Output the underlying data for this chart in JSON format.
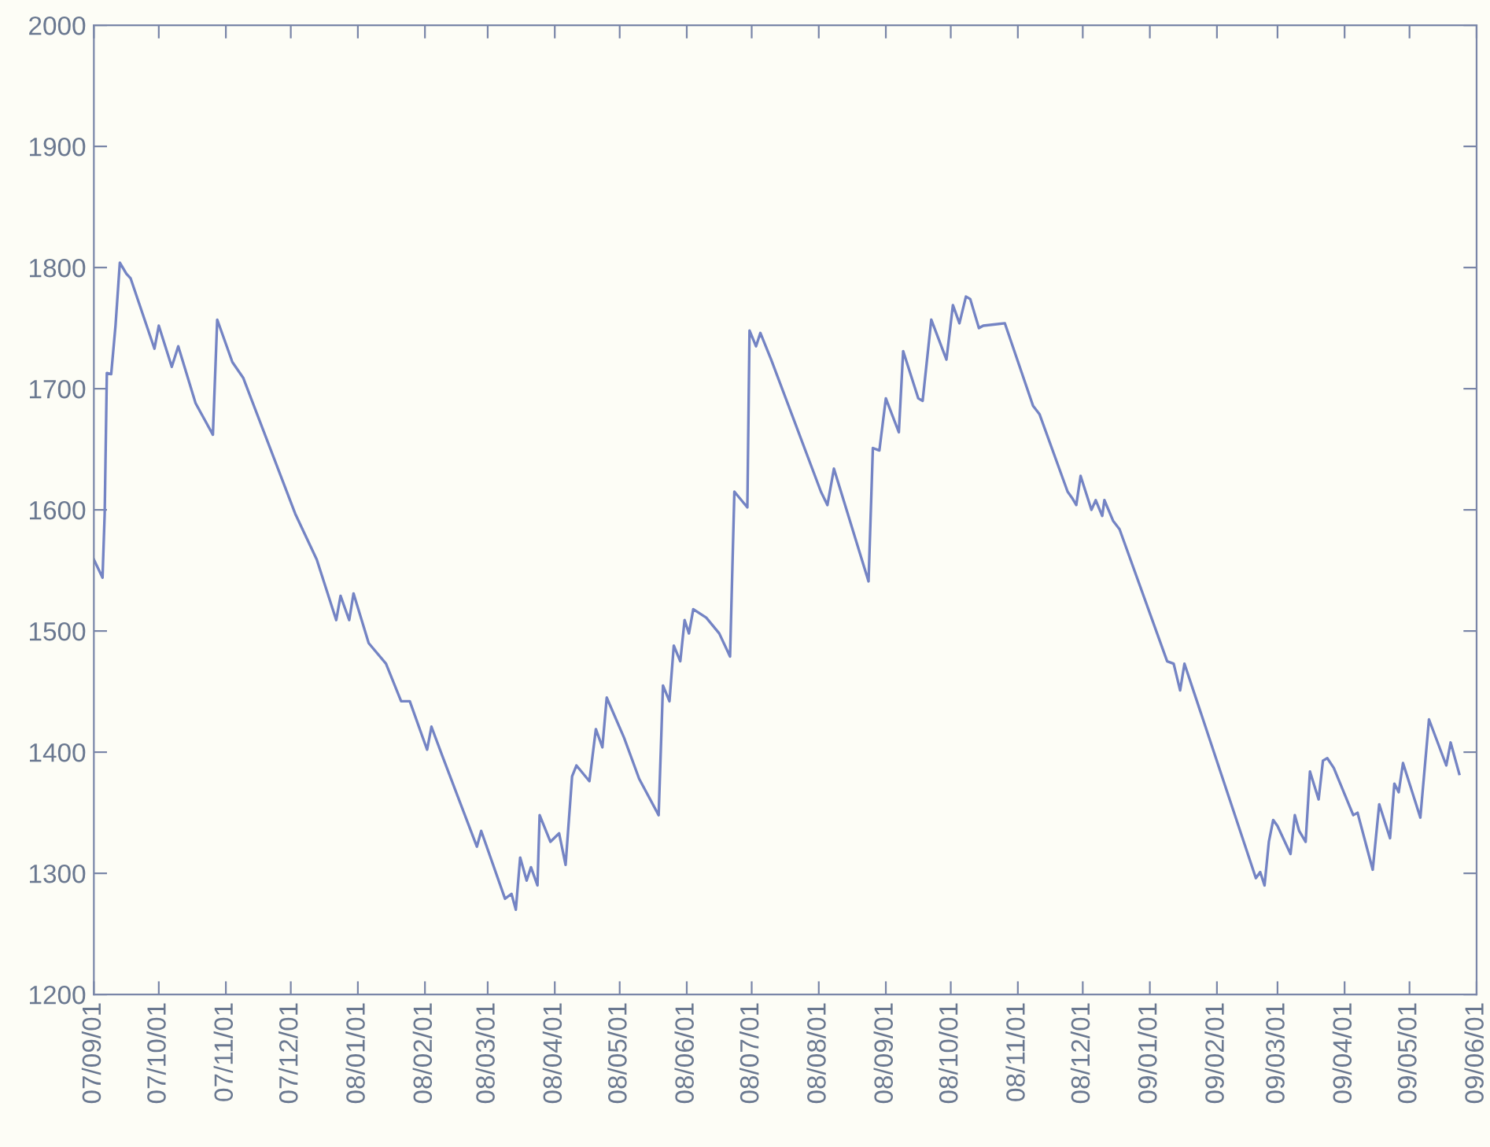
{
  "chart_data": {
    "type": "line",
    "x": [
      "2007-09-01",
      "2007-09-05",
      "2007-09-06",
      "2007-09-07",
      "2007-09-09",
      "2007-09-11",
      "2007-09-13",
      "2007-09-16",
      "2007-09-18",
      "2007-09-29",
      "2007-10-01",
      "2007-10-07",
      "2007-10-10",
      "2007-10-18",
      "2007-10-26",
      "2007-10-28",
      "2007-11-04",
      "2007-11-09",
      "2007-12-03",
      "2007-12-13",
      "2007-12-22",
      "2007-12-24",
      "2007-12-28",
      "2007-12-30",
      "2008-01-06",
      "2008-01-14",
      "2008-01-21",
      "2008-01-25",
      "2008-02-02",
      "2008-02-04",
      "2008-02-09",
      "2008-02-25",
      "2008-02-27",
      "2008-03-09",
      "2008-03-12",
      "2008-03-14",
      "2008-03-16",
      "2008-03-19",
      "2008-03-21",
      "2008-03-24",
      "2008-03-25",
      "2008-03-30",
      "2008-04-03",
      "2008-04-06",
      "2008-04-09",
      "2008-04-11",
      "2008-04-17",
      "2008-04-20",
      "2008-04-23",
      "2008-04-25",
      "2008-05-03",
      "2008-05-10",
      "2008-05-19",
      "2008-05-21",
      "2008-05-24",
      "2008-05-26",
      "2008-05-29",
      "2008-05-31",
      "2008-06-02",
      "2008-06-04",
      "2008-06-10",
      "2008-06-16",
      "2008-06-21",
      "2008-06-23",
      "2008-06-29",
      "2008-06-30",
      "2008-07-03",
      "2008-07-05",
      "2008-07-10",
      "2008-08-02",
      "2008-08-05",
      "2008-08-08",
      "2008-08-24",
      "2008-08-26",
      "2008-08-29",
      "2008-09-01",
      "2008-09-07",
      "2008-09-09",
      "2008-09-16",
      "2008-09-18",
      "2008-09-22",
      "2008-09-29",
      "2008-10-02",
      "2008-10-05",
      "2008-10-08",
      "2008-10-10",
      "2008-10-14",
      "2008-10-16",
      "2008-10-26",
      "2008-11-08",
      "2008-11-11",
      "2008-11-24",
      "2008-11-26",
      "2008-11-28",
      "2008-11-30",
      "2008-12-05",
      "2008-12-07",
      "2008-12-10",
      "2008-12-11",
      "2008-12-15",
      "2008-12-18",
      "2009-01-09",
      "2009-01-12",
      "2009-01-15",
      "2009-01-17",
      "2009-02-19",
      "2009-02-21",
      "2009-02-23",
      "2009-02-25",
      "2009-02-27",
      "2009-03-01",
      "2009-03-07",
      "2009-03-09",
      "2009-03-11",
      "2009-03-14",
      "2009-03-16",
      "2009-03-20",
      "2009-03-22",
      "2009-03-24",
      "2009-03-27",
      "2009-04-05",
      "2009-04-07",
      "2009-04-14",
      "2009-04-17",
      "2009-04-22",
      "2009-04-24",
      "2009-04-26",
      "2009-04-28",
      "2009-05-06",
      "2009-05-10",
      "2009-05-18",
      "2009-05-20",
      "2009-05-24"
    ],
    "series": [
      {
        "color": "#7484c4",
        "values": [
          1559,
          1544,
          1597,
          1713,
          1712,
          1752,
          1804,
          1795,
          1791,
          1733,
          1752,
          1718,
          1735,
          1688,
          1662,
          1757,
          1722,
          1709,
          1597,
          1559,
          1509,
          1529,
          1509,
          1531,
          1490,
          1473,
          1442,
          1442,
          1402,
          1421,
          1397,
          1322,
          1335,
          1279,
          1283,
          1270,
          1313,
          1294,
          1305,
          1290,
          1348,
          1326,
          1333,
          1307,
          1380,
          1389,
          1376,
          1419,
          1404,
          1445,
          1412,
          1378,
          1348,
          1455,
          1442,
          1488,
          1475,
          1509,
          1498,
          1518,
          1511,
          1498,
          1479,
          1615,
          1602,
          1748,
          1735,
          1746,
          1724,
          1615,
          1604,
          1634,
          1541,
          1651,
          1649,
          1692,
          1664,
          1731,
          1692,
          1690,
          1757,
          1724,
          1769,
          1754,
          1776,
          1774,
          1750,
          1752,
          1754,
          1686,
          1679,
          1615,
          1610,
          1604,
          1628,
          1600,
          1608,
          1595,
          1608,
          1591,
          1584,
          1475,
          1473,
          1451,
          1473,
          1296,
          1301,
          1290,
          1326,
          1344,
          1339,
          1316,
          1348,
          1335,
          1326,
          1384,
          1361,
          1393,
          1395,
          1387,
          1348,
          1350,
          1303,
          1357,
          1329,
          1374,
          1367,
          1391,
          1346,
          1427,
          1389,
          1408,
          1382
        ]
      }
    ],
    "xlim": [
      "2007-09-01",
      "2009-06-01"
    ],
    "xticks": [
      {
        "value": "2007-09-01",
        "label": "07/09/01"
      },
      {
        "value": "2007-10-01",
        "label": "07/10/01"
      },
      {
        "value": "2007-11-01",
        "label": "07/11/01"
      },
      {
        "value": "2007-12-01",
        "label": "07/12/01"
      },
      {
        "value": "2008-01-01",
        "label": "08/01/01"
      },
      {
        "value": "2008-02-01",
        "label": "08/02/01"
      },
      {
        "value": "2008-03-01",
        "label": "08/03/01"
      },
      {
        "value": "2008-04-01",
        "label": "08/04/01"
      },
      {
        "value": "2008-05-01",
        "label": "08/05/01"
      },
      {
        "value": "2008-06-01",
        "label": "08/06/01"
      },
      {
        "value": "2008-07-01",
        "label": "08/07/01"
      },
      {
        "value": "2008-08-01",
        "label": "08/08/01"
      },
      {
        "value": "2008-09-01",
        "label": "08/09/01"
      },
      {
        "value": "2008-10-01",
        "label": "08/10/01"
      },
      {
        "value": "2008-11-01",
        "label": "08/11/01"
      },
      {
        "value": "2008-12-01",
        "label": "08/12/01"
      },
      {
        "value": "2009-01-01",
        "label": "09/01/01"
      },
      {
        "value": "2009-02-01",
        "label": "09/02/01"
      },
      {
        "value": "2009-03-01",
        "label": "09/03/01"
      },
      {
        "value": "2009-04-01",
        "label": "09/04/01"
      },
      {
        "value": "2009-05-01",
        "label": "09/05/01"
      },
      {
        "value": "2009-06-01",
        "label": "09/06/01"
      }
    ],
    "ylim": [
      1200,
      2000
    ],
    "yticks": [
      1200,
      1300,
      1400,
      1500,
      1600,
      1700,
      1800,
      1900,
      2000
    ],
    "grid": false,
    "legend": false,
    "marker": "none",
    "line_style": "solid"
  }
}
